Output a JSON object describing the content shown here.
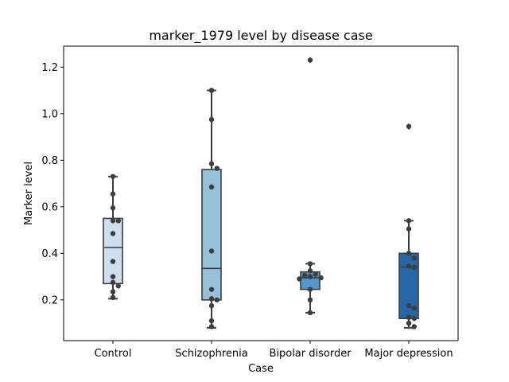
{
  "chart_data": {
    "type": "box",
    "title": "marker_1979 level by disease case",
    "xlabel": "Case",
    "ylabel": "Marker level",
    "ylim": [
      0.025,
      1.29
    ],
    "yticks": [
      "0.2",
      "0.4",
      "0.6",
      "0.8",
      "1.0",
      "1.2"
    ],
    "categories": [
      "Control",
      "Schizophrenia",
      "Bipolar disorder",
      "Major depression"
    ],
    "colors": [
      "#d0dff0",
      "#97c1db",
      "#5096c8",
      "#2567a9"
    ],
    "boxes": [
      {
        "category": "Control",
        "q1": 0.27,
        "median": 0.425,
        "q3": 0.55,
        "whislo": 0.205,
        "whishi": 0.73,
        "fliers": []
      },
      {
        "category": "Schizophrenia",
        "q1": 0.2,
        "median": 0.335,
        "q3": 0.76,
        "whislo": 0.08,
        "whishi": 1.1,
        "fliers": []
      },
      {
        "category": "Bipolar disorder",
        "q1": 0.245,
        "median": 0.295,
        "q3": 0.32,
        "whislo": 0.145,
        "whishi": 0.355,
        "fliers": [
          1.23
        ]
      },
      {
        "category": "Major depression",
        "q1": 0.12,
        "median": 0.34,
        "q3": 0.4,
        "whislo": 0.08,
        "whishi": 0.54,
        "fliers": [
          0.945
        ]
      }
    ],
    "points": [
      {
        "category": "Control",
        "values": [
          0.73,
          0.655,
          0.595,
          0.54,
          0.54,
          0.485,
          0.365,
          0.3,
          0.275,
          0.26,
          0.235,
          0.21
        ]
      },
      {
        "category": "Schizophrenia",
        "values": [
          1.1,
          0.975,
          0.785,
          0.765,
          0.685,
          0.41,
          0.245,
          0.205,
          0.2,
          0.175,
          0.11,
          0.085
        ]
      },
      {
        "category": "Bipolar disorder",
        "values": [
          1.23,
          0.355,
          0.325,
          0.31,
          0.305,
          0.3,
          0.295,
          0.29,
          0.245,
          0.2,
          0.145
        ]
      },
      {
        "category": "Major depression",
        "values": [
          0.945,
          0.54,
          0.505,
          0.4,
          0.38,
          0.345,
          0.34,
          0.175,
          0.165,
          0.125,
          0.12,
          0.1,
          0.085
        ]
      }
    ]
  }
}
